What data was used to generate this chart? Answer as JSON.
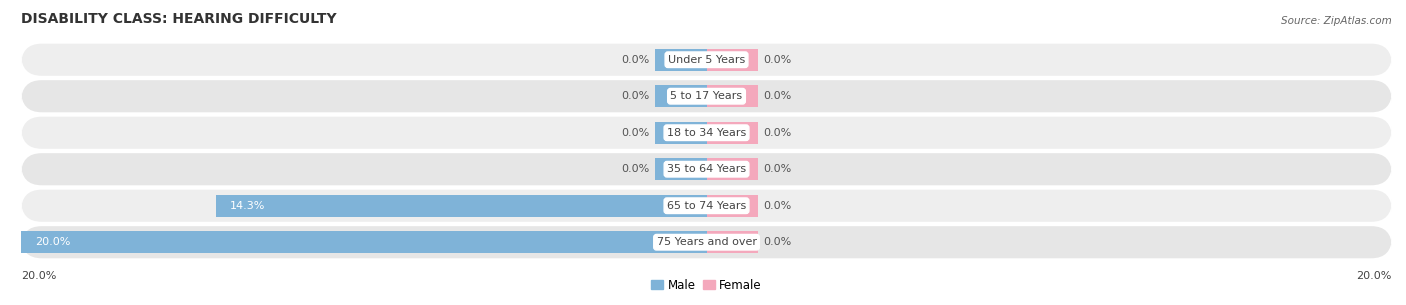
{
  "title": "DISABILITY CLASS: HEARING DIFFICULTY",
  "source": "Source: ZipAtlas.com",
  "categories": [
    "Under 5 Years",
    "5 to 17 Years",
    "18 to 34 Years",
    "35 to 64 Years",
    "65 to 74 Years",
    "75 Years and over"
  ],
  "male_values": [
    0.0,
    0.0,
    0.0,
    0.0,
    14.3,
    20.0
  ],
  "female_values": [
    0.0,
    0.0,
    0.0,
    0.0,
    0.0,
    0.0
  ],
  "male_color": "#7fb3d8",
  "female_color": "#f4a8bc",
  "row_bg_color_even": "#eeeeee",
  "row_bg_color_odd": "#e6e6e6",
  "x_max": 20.0,
  "x_min": -20.0,
  "stub_size": 1.5,
  "axis_label_left": "20.0%",
  "axis_label_right": "20.0%",
  "title_fontsize": 10,
  "label_fontsize": 8.0,
  "tick_fontsize": 8.0,
  "legend_fontsize": 8.5,
  "background_color": "#ffffff",
  "label_text_color": "#444444",
  "value_text_color_inside": "#ffffff",
  "value_text_color_outside": "#555555"
}
